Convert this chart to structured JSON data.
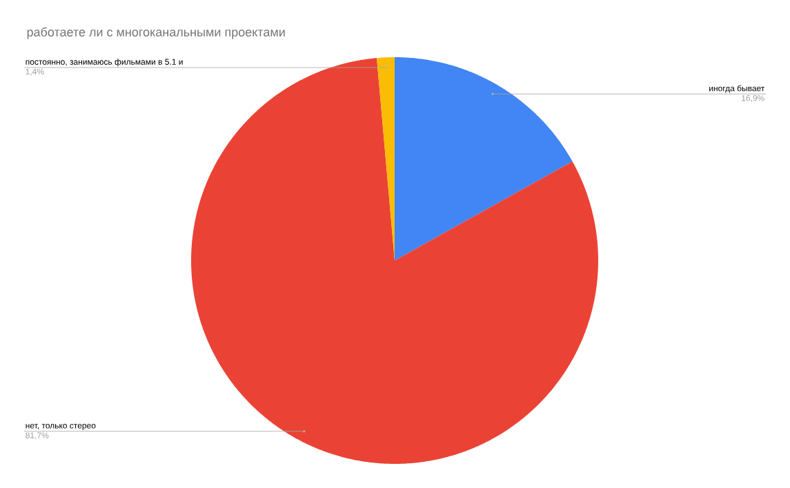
{
  "chart_data": {
    "type": "pie",
    "title": "работаете ли с многоканальными проектами",
    "categories": [
      "иногда бывает",
      "нет, только стерео",
      "постоянно, занимаюсь фильмами в 5.1 и"
    ],
    "values": [
      16.9,
      81.7,
      1.4
    ],
    "colors": [
      "#4285f4",
      "#ea4335",
      "#fbbc04"
    ],
    "value_labels": [
      "16,9%",
      "81,7%",
      "1,4%"
    ]
  }
}
